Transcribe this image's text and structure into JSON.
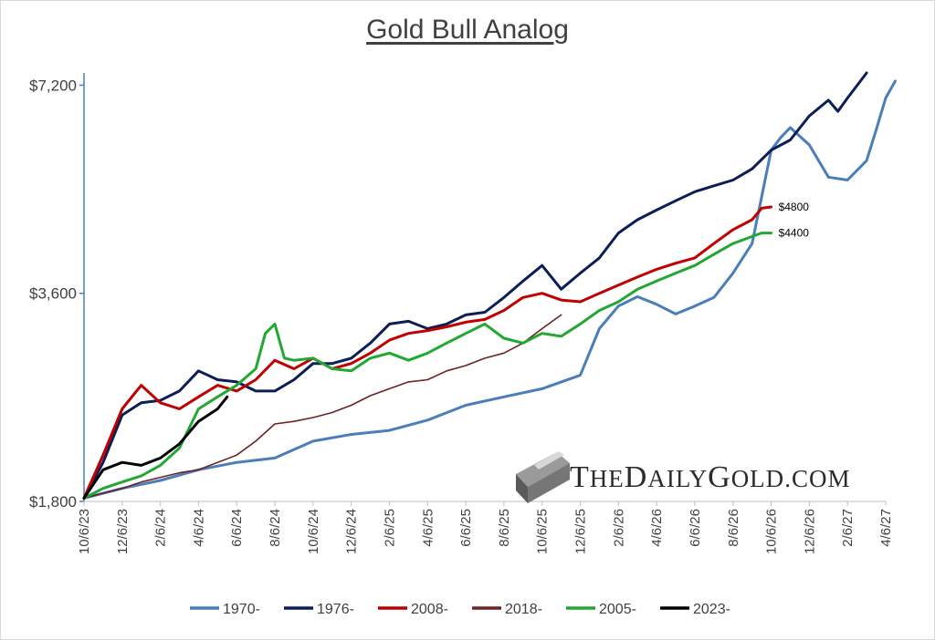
{
  "chart_data": {
    "type": "line",
    "title": "Gold Bull Analog",
    "y_ticks": [
      {
        "value": 1800,
        "label": "$1,800"
      },
      {
        "value": 3600,
        "label": "$3,600"
      },
      {
        "value": 7200,
        "label": "$7,200"
      }
    ],
    "y_scale": "log",
    "ylim": [
      1800,
      7500
    ],
    "x_ticks": [
      "10/6/23",
      "12/6/23",
      "2/6/24",
      "4/6/24",
      "6/6/24",
      "8/6/24",
      "10/6/24",
      "12/6/24",
      "2/6/25",
      "4/6/25",
      "6/6/25",
      "8/6/25",
      "10/6/25",
      "12/6/25",
      "2/6/26",
      "4/6/26",
      "6/6/26",
      "8/6/26",
      "10/6/26",
      "12/6/26",
      "2/6/27",
      "4/6/27"
    ],
    "x_unit": "month index from 10/6/23",
    "xlim": [
      0,
      42
    ],
    "grid": false,
    "legend_position": "bottom",
    "series": [
      {
        "name": "1970-",
        "color": "#4a7ebb",
        "x": [
          0,
          2,
          4,
          6,
          8,
          10,
          12,
          14,
          16,
          18,
          20,
          22,
          24,
          26,
          27,
          28,
          29,
          30,
          31,
          32,
          33,
          34,
          35,
          36,
          36.5,
          37,
          38,
          39,
          40,
          41,
          41.5,
          42,
          42.5
        ],
        "y": [
          1820,
          1880,
          1930,
          2000,
          2050,
          2080,
          2200,
          2250,
          2280,
          2360,
          2480,
          2550,
          2620,
          2740,
          3200,
          3450,
          3560,
          3470,
          3360,
          3450,
          3550,
          3850,
          4250,
          5800,
          6050,
          6250,
          5900,
          5300,
          5250,
          5600,
          6200,
          6900,
          7300
        ]
      },
      {
        "name": "1976-",
        "color": "#0b1e56",
        "x": [
          0,
          1,
          2,
          3,
          4,
          5,
          6,
          7,
          8,
          9,
          10,
          11,
          12,
          13,
          14,
          15,
          16,
          17,
          18,
          19,
          20,
          21,
          22,
          23,
          24,
          25,
          26,
          27,
          28,
          29,
          30,
          31,
          32,
          33,
          34,
          35,
          36,
          37,
          38,
          39,
          39.5,
          40,
          41
        ],
        "y": [
          1820,
          2050,
          2400,
          2500,
          2520,
          2600,
          2780,
          2700,
          2680,
          2600,
          2600,
          2700,
          2850,
          2850,
          2900,
          3050,
          3250,
          3280,
          3200,
          3250,
          3350,
          3380,
          3550,
          3750,
          3950,
          3650,
          3850,
          4050,
          4400,
          4600,
          4750,
          4900,
          5050,
          5150,
          5250,
          5450,
          5800,
          6000,
          6500,
          6850,
          6600,
          6900,
          7500
        ]
      },
      {
        "name": "2008-",
        "color": "#c00000",
        "x": [
          0,
          1,
          2,
          3,
          4,
          5,
          6,
          7,
          8,
          9,
          10,
          11,
          12,
          13,
          14,
          15,
          16,
          17,
          18,
          19,
          20,
          21,
          22,
          23,
          24,
          25,
          26,
          27,
          28,
          29,
          30,
          31,
          32,
          33,
          34,
          35,
          35.5,
          36
        ],
        "y": [
          1820,
          2100,
          2450,
          2650,
          2500,
          2450,
          2550,
          2650,
          2600,
          2700,
          2880,
          2800,
          2900,
          2800,
          2850,
          2950,
          3080,
          3150,
          3180,
          3220,
          3270,
          3300,
          3400,
          3550,
          3600,
          3520,
          3500,
          3600,
          3700,
          3800,
          3900,
          3980,
          4050,
          4250,
          4450,
          4600,
          4780,
          4800
        ]
      },
      {
        "name": "2018-",
        "color": "#6b2324",
        "x": [
          0,
          1,
          2,
          3,
          4,
          5,
          6,
          7,
          8,
          9,
          10,
          11,
          12,
          13,
          14,
          15,
          16,
          17,
          18,
          19,
          20,
          21,
          22,
          23,
          24,
          25
        ],
        "y": [
          1820,
          1850,
          1880,
          1920,
          1950,
          1980,
          2000,
          2050,
          2100,
          2200,
          2330,
          2350,
          2380,
          2420,
          2480,
          2560,
          2620,
          2680,
          2700,
          2780,
          2830,
          2900,
          2950,
          3050,
          3200,
          3350
        ]
      },
      {
        "name": "2005-",
        "color": "#22a832",
        "x": [
          0,
          1,
          2,
          3,
          4,
          5,
          6,
          7,
          8,
          9,
          9.5,
          10,
          10.5,
          11,
          12,
          13,
          14,
          15,
          16,
          17,
          18,
          19,
          20,
          21,
          22,
          23,
          24,
          25,
          26,
          27,
          28,
          29,
          30,
          31,
          32,
          33,
          34,
          35,
          35.5,
          36
        ],
        "y": [
          1820,
          1880,
          1920,
          1960,
          2030,
          2150,
          2450,
          2550,
          2650,
          2800,
          3150,
          3250,
          2900,
          2880,
          2900,
          2800,
          2780,
          2900,
          2950,
          2880,
          2950,
          3050,
          3150,
          3250,
          3100,
          3050,
          3150,
          3120,
          3250,
          3400,
          3500,
          3650,
          3750,
          3850,
          3950,
          4100,
          4250,
          4350,
          4400,
          4400
        ]
      },
      {
        "name": "2023-",
        "color": "#000000",
        "x": [
          0,
          1,
          2,
          3,
          4,
          5,
          6,
          7,
          7.5
        ],
        "y": [
          1820,
          2000,
          2050,
          2030,
          2080,
          2180,
          2350,
          2450,
          2550
        ]
      }
    ],
    "annotations": [
      {
        "text": "$4800",
        "x": 36,
        "y": 4800
      },
      {
        "text": "$4400",
        "x": 36,
        "y": 4400
      }
    ]
  },
  "branding": {
    "the": "T",
    "he": "HE",
    "daily_d": "D",
    "daily_rest": "AILY",
    "gold_g": "G",
    "gold_rest": "OLD",
    "dot_com": ".COM"
  }
}
